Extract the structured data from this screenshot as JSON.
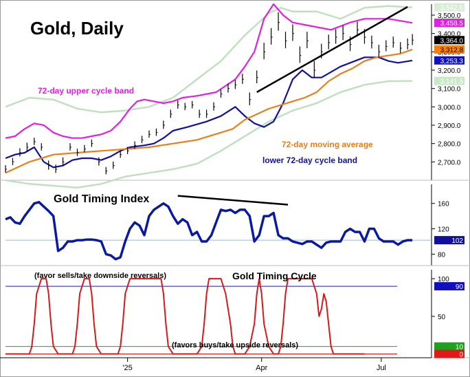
{
  "chart_data": [
    {
      "type": "line",
      "panel": "price",
      "title": "Gold, Daily",
      "x_axis_labels": [
        "'25",
        "Apr",
        "Jul"
      ],
      "ylim": [
        2600,
        3560
      ],
      "y_ticks": [
        2700,
        2800,
        2900,
        3000,
        3100,
        3200,
        3300,
        3400,
        3500
      ],
      "y_tick_labels": [
        "2,700.0",
        "2,800.0",
        "2,900.0",
        "3,000.0",
        "3,100.0",
        "3,200.0",
        "3,300.0",
        "3,400.0",
        "3,500.0"
      ],
      "price_badges": [
        {
          "label": "3,542.6",
          "value": 3542.6,
          "color": "#d8ecd8",
          "text_color": "#ffffff"
        },
        {
          "label": "3,458.5",
          "value": 3458.5,
          "color": "#e020e0",
          "text_color": "#ffffff"
        },
        {
          "label": "3,364.0",
          "value": 3364.0,
          "color": "#000000",
          "text_color": "#ffffff"
        },
        {
          "label": "3,312.8",
          "value": 3312.8,
          "color": "#f08010",
          "text_color": "#000000"
        },
        {
          "label": "3,253.3",
          "value": 3253.3,
          "color": "#1010c0",
          "text_color": "#ffffff"
        },
        {
          "label": "3,141.5",
          "value": 3141.5,
          "color": "#c8e8c8",
          "text_color": "#ffffff"
        }
      ],
      "series": [
        {
          "name": "72-day upper cycle band",
          "color": "#e020e0",
          "x": [
            0,
            4,
            8,
            12,
            16,
            18,
            20,
            24,
            28,
            32,
            36,
            40,
            44,
            48,
            52,
            55,
            58,
            62,
            66,
            70,
            74,
            80,
            88,
            96,
            100,
            104,
            108,
            112,
            116,
            120,
            128,
            136,
            140,
            144,
            150,
            160,
            170
          ],
          "y": [
            2830,
            2840,
            2880,
            2910,
            2900,
            2880,
            2860,
            2840,
            2830,
            2830,
            2840,
            2850,
            2870,
            2920,
            2990,
            3030,
            3040,
            3030,
            3020,
            3030,
            3050,
            3060,
            3080,
            3150,
            3220,
            3300,
            3480,
            3560,
            3500,
            3460,
            3440,
            3420,
            3440,
            3460,
            3480,
            3480,
            3458
          ]
        },
        {
          "name": "lower 72-day cycle band",
          "color": "#1010a0",
          "x": [
            0,
            4,
            8,
            12,
            16,
            20,
            24,
            28,
            32,
            36,
            40,
            44,
            48,
            52,
            58,
            62,
            66,
            70,
            76,
            84,
            90,
            96,
            100,
            104,
            108,
            112,
            116,
            120,
            124,
            128,
            132,
            136,
            140,
            144,
            150,
            156,
            160,
            164,
            170
          ],
          "y": [
            2720,
            2740,
            2750,
            2780,
            2700,
            2670,
            2680,
            2710,
            2720,
            2720,
            2710,
            2730,
            2760,
            2780,
            2790,
            2800,
            2830,
            2870,
            2890,
            2920,
            2950,
            3000,
            2950,
            2910,
            2890,
            2920,
            3020,
            3150,
            3200,
            3160,
            3160,
            3190,
            3220,
            3240,
            3270,
            3270,
            3250,
            3240,
            3253
          ]
        },
        {
          "name": "72-day moving average",
          "color": "#e8801a",
          "x": [
            0,
            10,
            20,
            30,
            40,
            50,
            60,
            70,
            80,
            90,
            95,
            100,
            105,
            110,
            115,
            120,
            125,
            130,
            135,
            140,
            145,
            150,
            155,
            160,
            165,
            170
          ],
          "y": [
            2640,
            2700,
            2740,
            2750,
            2760,
            2770,
            2780,
            2800,
            2820,
            2860,
            2880,
            2930,
            2960,
            2990,
            3010,
            3030,
            3050,
            3080,
            3140,
            3180,
            3210,
            3250,
            3270,
            3280,
            3290,
            3313
          ]
        },
        {
          "name": "",
          "color": "#c0e0c0",
          "x": [
            0,
            10,
            20,
            30,
            40,
            50,
            60,
            70,
            80,
            90,
            100,
            110,
            115,
            120,
            130,
            140,
            150,
            160,
            170
          ],
          "y": [
            3000,
            3050,
            3040,
            2990,
            2970,
            2980,
            3000,
            3050,
            3150,
            3250,
            3390,
            3510,
            3540,
            3520,
            3520,
            3480,
            3540,
            3550,
            3542
          ]
        },
        {
          "name": "",
          "color": "#c0e0c0",
          "x": [
            0,
            10,
            20,
            30,
            40,
            50,
            60,
            70,
            80,
            90,
            100,
            110,
            120,
            130,
            140,
            150,
            160,
            170
          ],
          "y": [
            2600,
            2580,
            2570,
            2560,
            2580,
            2620,
            2640,
            2660,
            2690,
            2760,
            2840,
            2920,
            2980,
            3020,
            3080,
            3120,
            3140,
            3141
          ]
        }
      ],
      "price_bars": {
        "x": [
          0,
          3,
          6,
          9,
          12,
          15,
          18,
          21,
          24,
          27,
          30,
          33,
          36,
          39,
          42,
          45,
          48,
          51,
          54,
          57,
          60,
          63,
          66,
          69,
          72,
          75,
          78,
          81,
          84,
          87,
          90,
          93,
          96,
          99,
          102,
          105,
          108,
          111,
          114,
          117,
          120,
          123,
          126,
          129,
          132,
          135,
          138,
          141,
          144,
          147,
          150,
          153,
          156,
          159,
          162,
          165,
          168,
          170
        ],
        "close": [
          2660,
          2700,
          2750,
          2780,
          2810,
          2780,
          2680,
          2660,
          2700,
          2780,
          2750,
          2770,
          2800,
          2700,
          2650,
          2680,
          2740,
          2760,
          2790,
          2820,
          2850,
          2860,
          2900,
          2960,
          3010,
          3000,
          3010,
          2960,
          2960,
          3000,
          3070,
          3100,
          3120,
          3150,
          3040,
          3160,
          3300,
          3380,
          3460,
          3360,
          3400,
          3280,
          3360,
          3200,
          3300,
          3350,
          3380,
          3400,
          3340,
          3420,
          3380,
          3350,
          3300,
          3330,
          3350,
          3320,
          3340,
          3364
        ],
        "range": [
          40,
          40,
          45,
          45,
          40,
          40,
          50,
          45,
          45,
          40,
          40,
          40,
          40,
          45,
          40,
          40,
          40,
          40,
          40,
          40,
          40,
          40,
          45,
          45,
          45,
          40,
          40,
          45,
          45,
          45,
          45,
          50,
          50,
          55,
          70,
          70,
          90,
          90,
          100,
          90,
          90,
          90,
          90,
          90,
          80,
          80,
          80,
          80,
          80,
          80,
          80,
          70,
          70,
          60,
          60,
          60,
          60,
          60
        ]
      },
      "annotations": [
        "72-day upper cycle band",
        "72-day moving average",
        "lower 72-day cycle band"
      ]
    },
    {
      "type": "line",
      "panel": "timing_index",
      "title": "Gold Timing Index",
      "ylim": [
        62,
        190
      ],
      "y_ticks": [
        80,
        120,
        160
      ],
      "y_tick_labels": [
        "80",
        "120",
        "160"
      ],
      "reference_line": 102,
      "current_value_label": "102",
      "series": [
        {
          "name": "Gold Timing Index",
          "color": "#0a1aa0",
          "x": [
            0,
            2,
            4,
            6,
            8,
            10,
            12,
            14,
            16,
            18,
            20,
            22,
            24,
            26,
            28,
            30,
            32,
            34,
            36,
            38,
            40,
            42,
            44,
            46,
            48,
            50,
            52,
            54,
            56,
            58,
            60,
            62,
            64,
            66,
            68,
            70,
            72,
            74,
            76,
            78,
            80,
            82,
            84,
            86,
            88,
            90,
            92,
            94,
            96,
            98,
            100,
            102,
            104,
            106,
            108,
            110,
            112,
            114,
            116,
            118,
            120,
            122,
            124,
            126,
            128,
            130,
            132,
            134,
            136,
            138,
            140,
            142,
            144,
            146,
            148,
            150,
            152,
            154,
            156,
            158,
            160,
            162,
            164,
            166,
            168,
            170
          ],
          "y": [
            135,
            138,
            130,
            128,
            140,
            150,
            160,
            162,
            155,
            148,
            140,
            85,
            90,
            100,
            100,
            102,
            102,
            103,
            103,
            102,
            100,
            80,
            78,
            72,
            75,
            100,
            120,
            130,
            125,
            110,
            140,
            150,
            155,
            160,
            155,
            140,
            128,
            135,
            130,
            110,
            115,
            100,
            100,
            110,
            130,
            150,
            148,
            150,
            145,
            150,
            150,
            140,
            100,
            110,
            140,
            140,
            145,
            110,
            105,
            105,
            100,
            98,
            96,
            100,
            100,
            95,
            90,
            98,
            100,
            100,
            100,
            115,
            120,
            115,
            115,
            100,
            120,
            120,
            105,
            100,
            100,
            100,
            95,
            100,
            102,
            102
          ]
        }
      ]
    },
    {
      "type": "line",
      "panel": "timing_cycle",
      "title": "Gold Timing Cycle",
      "ylim": [
        -5,
        112
      ],
      "y_ticks": [
        50,
        100
      ],
      "y_tick_labels": [
        "50",
        "100"
      ],
      "reference_lines": [
        {
          "value": 90,
          "label": "90",
          "color": "#1818b0"
        },
        {
          "value": 10,
          "label": "10",
          "color": "#20a020"
        },
        {
          "value": 0,
          "label": "0",
          "color": "#e01818"
        }
      ],
      "notes": [
        "(favor sells/take downside reversals)",
        "(favors buys/take upside reversals)"
      ],
      "series": [
        {
          "name": "Gold Timing Cycle",
          "color": "#d81818",
          "x": [
            0,
            10,
            11,
            12,
            13,
            15,
            17,
            18,
            19,
            20,
            22,
            28,
            29,
            30,
            31,
            33,
            35,
            36,
            37,
            38,
            40,
            47,
            48,
            49,
            50,
            52,
            55,
            58,
            65,
            66,
            67,
            68,
            70,
            80,
            82,
            83,
            84,
            85,
            86,
            90,
            92,
            94,
            95,
            96,
            100,
            102,
            104,
            105,
            106,
            107,
            108,
            110,
            112,
            114,
            115,
            116,
            117,
            118,
            120,
            128,
            130,
            131,
            132,
            133,
            134,
            135,
            136,
            137,
            138,
            139,
            140,
            141,
            142,
            143,
            150
          ],
          "y": [
            0,
            0,
            10,
            40,
            80,
            100,
            100,
            80,
            40,
            10,
            0,
            0,
            10,
            40,
            80,
            100,
            100,
            80,
            40,
            10,
            0,
            0,
            10,
            40,
            80,
            100,
            100,
            100,
            100,
            80,
            40,
            10,
            0,
            0,
            10,
            40,
            80,
            100,
            100,
            100,
            80,
            40,
            10,
            0,
            0,
            10,
            40,
            80,
            100,
            80,
            40,
            10,
            0,
            0,
            10,
            40,
            80,
            100,
            100,
            100,
            80,
            50,
            60,
            80,
            70,
            40,
            10,
            0,
            0,
            0,
            0,
            0,
            0,
            0,
            0
          ]
        }
      ]
    }
  ]
}
